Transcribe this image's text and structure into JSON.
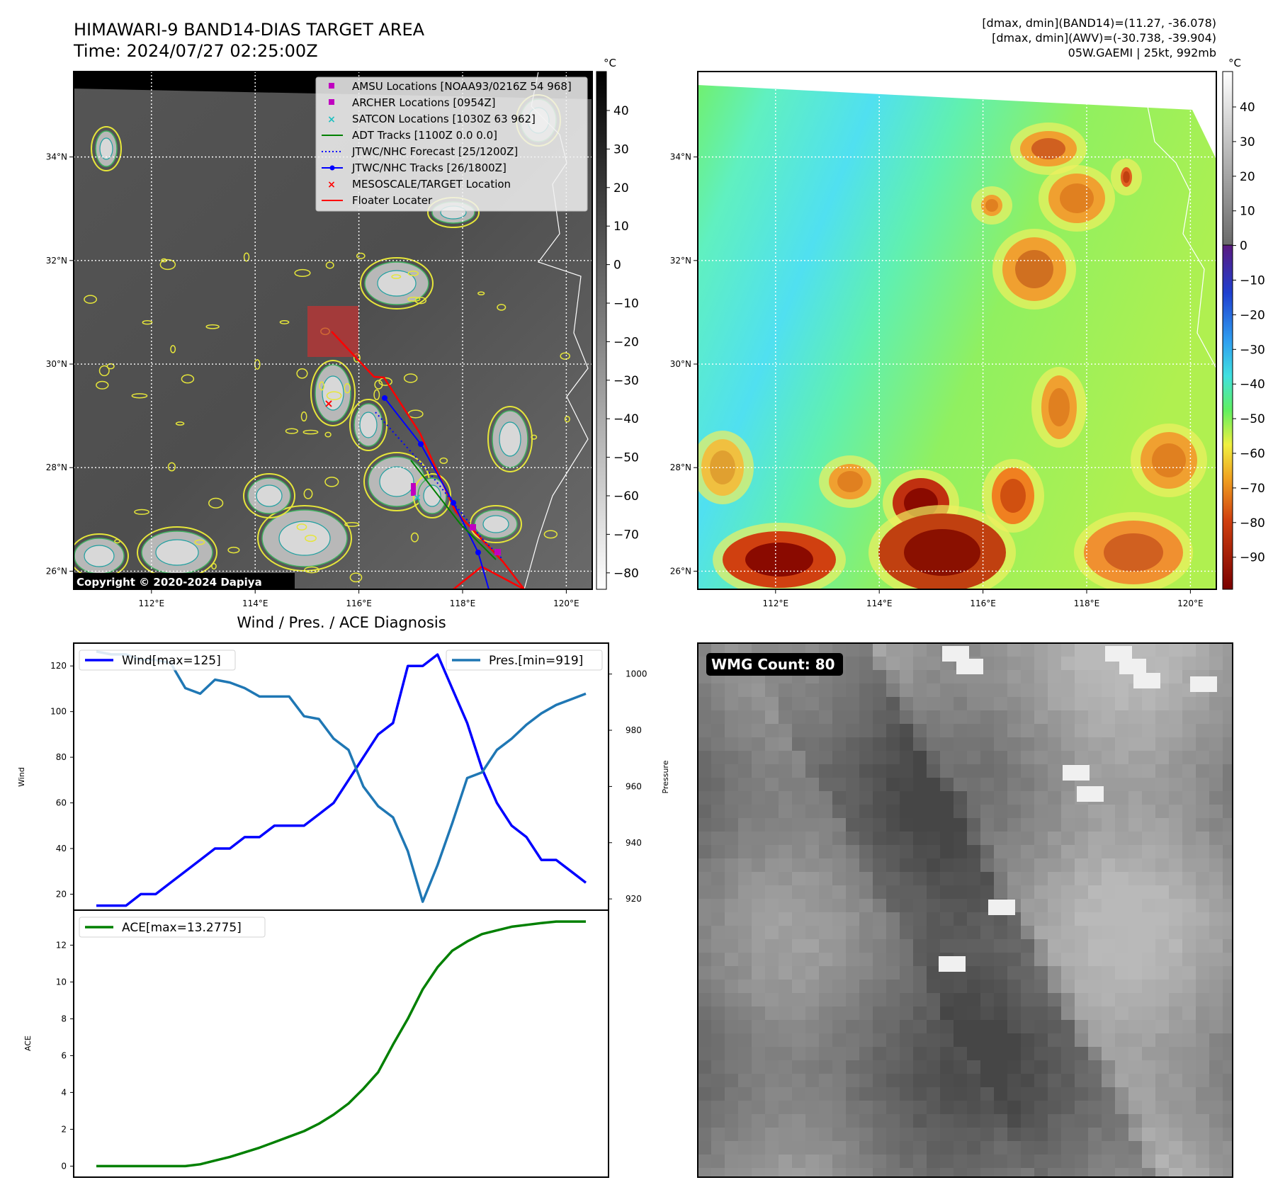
{
  "header": {
    "title": "HIMAWARI-9 BAND14-DIAS TARGET AREA",
    "time": "Time: 2024/07/27 02:25:00Z",
    "stats_line1": "[dmax, dmin](BAND14)=(11.27, -36.078)",
    "stats_line2": "[dmax, dmin](AWV)=(-30.738, -39.904)",
    "stats_line3": "05W.GAEMI | 25kt, 992mb"
  },
  "map": {
    "lon_ticks": [
      "112°E",
      "114°E",
      "116°E",
      "118°E",
      "120°E"
    ],
    "lat_ticks": [
      "34°N",
      "32°N",
      "30°N",
      "28°N",
      "26°N"
    ],
    "copyright": "Copyright © 2020-2024 Dapiya",
    "legend": [
      {
        "label": "AMSU Locations [NOAA93/0216Z 54 968]",
        "marker": "square",
        "color": "#c000c0"
      },
      {
        "label": "ARCHER Locations [0954Z]",
        "marker": "square",
        "color": "#c000c0"
      },
      {
        "label": "SATCON Locations [1030Z 63 962]",
        "marker": "x",
        "color": "#20c0c0"
      },
      {
        "label": "ADT Tracks [1100Z 0.0 0.0]",
        "marker": "line",
        "color": "#008000"
      },
      {
        "label": "JTWC/NHC Forecast [25/1200Z]",
        "marker": "dotted",
        "color": "#0000ff"
      },
      {
        "label": "JTWC/NHC Tracks [26/1800Z]",
        "marker": "line-dot",
        "color": "#0000ff"
      },
      {
        "label": "MESOSCALE/TARGET Location",
        "marker": "x",
        "color": "#ff0000"
      },
      {
        "label": "Floater Locater",
        "marker": "line",
        "color": "#ff0000"
      }
    ],
    "unit": "°C",
    "colorbar_gray_ticks": [
      "40",
      "30",
      "20",
      "10",
      "0",
      "−10",
      "−20",
      "−30",
      "−40",
      "−50",
      "−60",
      "−70",
      "−80"
    ],
    "colorbar_color_ticks": [
      "40",
      "30",
      "20",
      "10",
      "0",
      "−10",
      "−20",
      "−30",
      "−40",
      "−50",
      "−60",
      "−70",
      "−80",
      "−90"
    ]
  },
  "wmg": {
    "label": "WMG Count: 80"
  },
  "chart_data": [
    {
      "type": "line",
      "title": "Wind / Pres. / ACE Diagnosis",
      "ylabel": "Wind",
      "y2label": "Pressure",
      "ylim": [
        13,
        130
      ],
      "y2lim": [
        916,
        1011
      ],
      "yticks": [
        "20",
        "40",
        "60",
        "80",
        "100",
        "120"
      ],
      "y2ticks": [
        "920",
        "940",
        "960",
        "980",
        "1000"
      ],
      "series": [
        {
          "name": "Wind[max=125]",
          "color": "#0000ff",
          "values": [
            15,
            15,
            15,
            20,
            20,
            25,
            30,
            35,
            40,
            40,
            45,
            45,
            50,
            50,
            50,
            55,
            60,
            70,
            80,
            90,
            95,
            120,
            120,
            125,
            110,
            95,
            75,
            60,
            50,
            45,
            35,
            35,
            30,
            25
          ]
        },
        {
          "name": "Pres.[min=919]",
          "color": "#1f77b4",
          "values": [
            1008,
            1007,
            1007,
            1005,
            1005,
            1004,
            995,
            993,
            998,
            997,
            995,
            992,
            992,
            992,
            985,
            984,
            977,
            973,
            960,
            953,
            949,
            937,
            919,
            932,
            947,
            963,
            965,
            973,
            977,
            982,
            986,
            989,
            991,
            993
          ]
        }
      ]
    },
    {
      "type": "line",
      "ylabel": "ACE",
      "ylim": [
        -0.6,
        13.9
      ],
      "yticks": [
        "0",
        "2",
        "4",
        "6",
        "8",
        "10",
        "12"
      ],
      "series": [
        {
          "name": "ACE[max=13.2775]",
          "color": "#008000",
          "values": [
            0,
            0,
            0,
            0,
            0,
            0,
            0,
            0.1,
            0.3,
            0.5,
            0.75,
            1.0,
            1.3,
            1.6,
            1.9,
            2.3,
            2.8,
            3.4,
            4.2,
            5.1,
            6.6,
            8.0,
            9.6,
            10.8,
            11.7,
            12.2,
            12.6,
            12.8,
            13.0,
            13.1,
            13.2,
            13.28,
            13.28,
            13.28
          ]
        }
      ]
    }
  ]
}
